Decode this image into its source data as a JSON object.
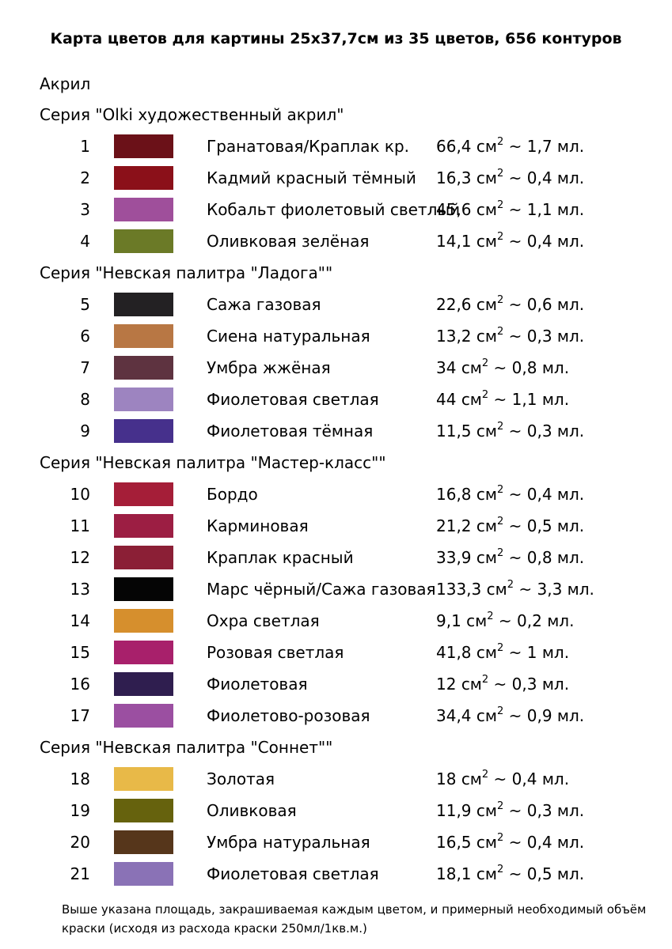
{
  "title": "Карта цветов для картины 25x37,7см из 35 цветов, 656 контуров",
  "paint_type": "Акрил",
  "area_unit": "см",
  "area_exponent": "2",
  "approx_sign": "~",
  "volume_unit": "мл.",
  "series": [
    {
      "name": "Серия \"Olki художественный акрил\"",
      "colors": [
        {
          "num": "1",
          "hex": "#6b1118",
          "name": "Гранатовая/Краплак кр.",
          "area": "66,4",
          "volume": "1,7"
        },
        {
          "num": "2",
          "hex": "#8b1019",
          "name": "Кадмий красный тёмный",
          "area": "16,3",
          "volume": "0,4"
        },
        {
          "num": "3",
          "hex": "#9f4f9b",
          "name": "Кобальт фиолетовый светлый",
          "area": "45,6",
          "volume": "1,1"
        },
        {
          "num": "4",
          "hex": "#6b7a27",
          "name": "Оливковая зелёная",
          "area": "14,1",
          "volume": "0,4"
        }
      ]
    },
    {
      "name": "Серия \"Невская палитра \"Ладога\"\"",
      "colors": [
        {
          "num": "5",
          "hex": "#232123",
          "name": "Сажа газовая",
          "area": "22,6",
          "volume": "0,6"
        },
        {
          "num": "6",
          "hex": "#b87744",
          "name": "Сиена натуральная",
          "area": "13,2",
          "volume": "0,3"
        },
        {
          "num": "7",
          "hex": "#5e3340",
          "name": "Умбра жжёная",
          "area": "34",
          "volume": "0,8"
        },
        {
          "num": "8",
          "hex": "#9d84c0",
          "name": "Фиолетовая светлая",
          "area": "44",
          "volume": "1,1"
        },
        {
          "num": "9",
          "hex": "#46308c",
          "name": "Фиолетовая тёмная",
          "area": "11,5",
          "volume": "0,3"
        }
      ]
    },
    {
      "name": "Серия \"Невская палитра \"Мастер-класс\"\"",
      "colors": [
        {
          "num": "10",
          "hex": "#a51e38",
          "name": "Бордо",
          "area": "16,8",
          "volume": "0,4"
        },
        {
          "num": "11",
          "hex": "#9c1e43",
          "name": "Карминовая",
          "area": "21,2",
          "volume": "0,5"
        },
        {
          "num": "12",
          "hex": "#8b1f36",
          "name": "Краплак красный",
          "area": "33,9",
          "volume": "0,8"
        },
        {
          "num": "13",
          "hex": "#050505",
          "name": "Марс чёрный/Сажа газовая",
          "area": "133,3",
          "volume": "3,3"
        },
        {
          "num": "14",
          "hex": "#d68f2d",
          "name": "Охра светлая",
          "area": "9,1",
          "volume": "0,2"
        },
        {
          "num": "15",
          "hex": "#a8206b",
          "name": "Розовая светлая",
          "area": "41,8",
          "volume": "1"
        },
        {
          "num": "16",
          "hex": "#2f1e4f",
          "name": "Фиолетовая",
          "area": "12",
          "volume": "0,3"
        },
        {
          "num": "17",
          "hex": "#9b4fa1",
          "name": "Фиолетово-розовая",
          "area": "34,4",
          "volume": "0,9"
        }
      ]
    },
    {
      "name": "Серия \"Невская палитра \"Соннет\"\"",
      "colors": [
        {
          "num": "18",
          "hex": "#e8b948",
          "name": "Золотая",
          "area": "18",
          "volume": "0,4"
        },
        {
          "num": "19",
          "hex": "#66620d",
          "name": "Оливковая",
          "area": "11,9",
          "volume": "0,3"
        },
        {
          "num": "20",
          "hex": "#56361b",
          "name": "Умбра натуральная",
          "area": "16,5",
          "volume": "0,4"
        },
        {
          "num": "21",
          "hex": "#8a72b6",
          "name": "Фиолетовая светлая",
          "area": "18,1",
          "volume": "0,5"
        }
      ]
    }
  ],
  "footnote": "Выше указана площадь, закрашиваемая каждым цветом, и примерный необходимый объём краски (исходя из расхода краски 250мл/1кв.м.)"
}
